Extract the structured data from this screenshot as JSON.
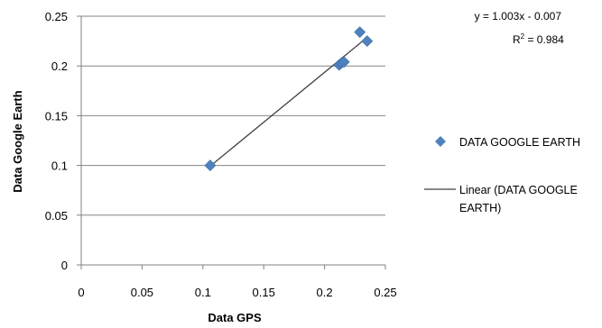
{
  "chart_data": {
    "type": "scatter",
    "title": "",
    "xlabel": "Data GPS",
    "ylabel": "Data Google Earth",
    "xlim": [
      0,
      0.25
    ],
    "ylim": [
      0,
      0.25
    ],
    "xticks": [
      "0",
      "0.05",
      "0.1",
      "0.15",
      "0.2",
      "0.25"
    ],
    "yticks": [
      "0",
      "0.05",
      "0.1",
      "0.15",
      "0.2",
      "0.25"
    ],
    "grid": "horizontal",
    "legend_position": "right",
    "series": [
      {
        "name": "DATA GOOGLE EARTH",
        "color": "#4F81BD",
        "marker": "diamond",
        "points": [
          {
            "x": 0.106,
            "y": 0.1
          },
          {
            "x": 0.212,
            "y": 0.201
          },
          {
            "x": 0.214,
            "y": 0.203
          },
          {
            "x": 0.216,
            "y": 0.204
          },
          {
            "x": 0.229,
            "y": 0.234
          },
          {
            "x": 0.235,
            "y": 0.225
          }
        ]
      }
    ],
    "trendline": {
      "legend_line1": "Linear (DATA GOOGLE",
      "legend_line2": "EARTH)",
      "color": "#404040",
      "slope": 1.003,
      "intercept": -0.007,
      "x_range": [
        0.106,
        0.235
      ],
      "equation": "y = 1.003x - 0.007",
      "r_squared_prefix": "R",
      "r_squared_exp": "2",
      "r_squared_suffix": " = 0.984"
    }
  }
}
